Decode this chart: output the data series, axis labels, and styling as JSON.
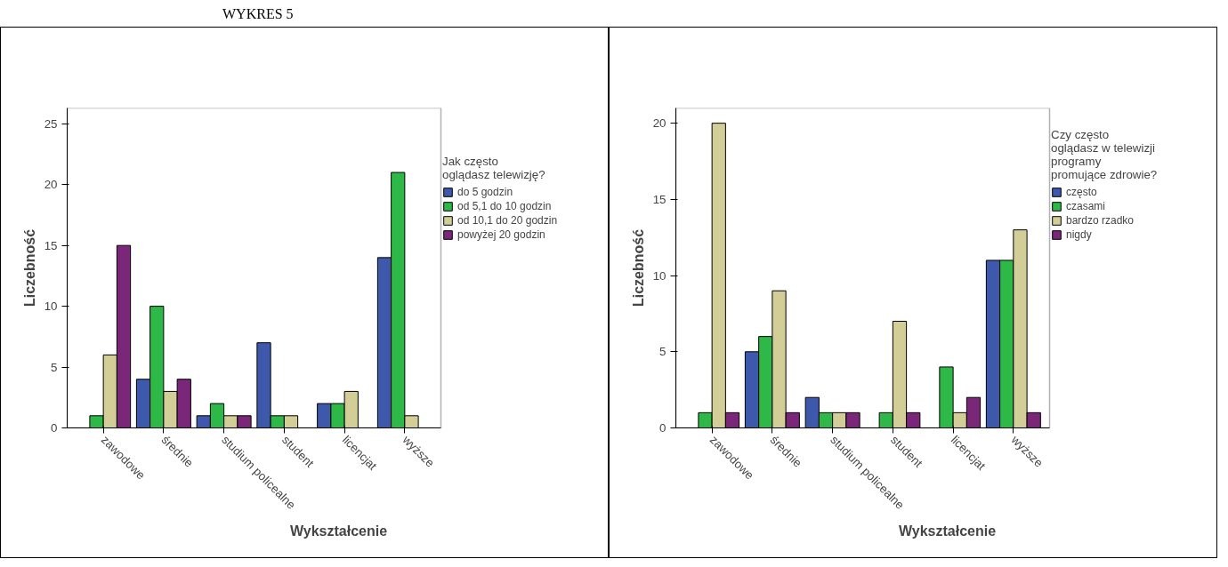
{
  "chart_data": [
    {
      "type": "bar",
      "xlabel": "Wykształcenie",
      "ylabel": "Liczebność",
      "legend_title": "Jak często\noglądasz telewizję?",
      "annotations": [
        "WYKRES 5"
      ],
      "categories": [
        "zawodowe",
        "średnie",
        "studium policealne",
        "student",
        "licencjat",
        "wyższe"
      ],
      "series": [
        {
          "name": "do 5 godzin",
          "color": "#3e58ac",
          "values": [
            null,
            4,
            1,
            7,
            2,
            14
          ]
        },
        {
          "name": "od 5,1 do 10 godzin",
          "color": "#2eb848",
          "values": [
            1,
            10,
            2,
            1,
            2,
            21
          ]
        },
        {
          "name": "od 10,1 do 20 godzin",
          "color": "#d3ce97",
          "values": [
            6,
            3,
            1,
            1,
            3,
            1
          ]
        },
        {
          "name": "powyżej 20 godzin",
          "color": "#7b2779",
          "values": [
            15,
            4,
            1,
            null,
            null,
            null
          ]
        }
      ],
      "ylim": [
        0,
        26.3
      ],
      "yticks": [
        0,
        5,
        10,
        15,
        20,
        25
      ],
      "grid": false,
      "legend": "right"
    },
    {
      "type": "bar",
      "xlabel": "Wykształcenie",
      "ylabel": "Liczebność",
      "legend_title": "Czy często\noglądasz w telewizji\nprogramy\npromujące zdrowie?",
      "categories": [
        "zawodowe",
        "średnie",
        "studium policealne",
        "student",
        "licencjat",
        "wyższe"
      ],
      "series": [
        {
          "name": "często",
          "color": "#3e58ac",
          "values": [
            null,
            5,
            2,
            null,
            null,
            11
          ]
        },
        {
          "name": "czasami",
          "color": "#2eb848",
          "values": [
            1,
            6,
            1,
            1,
            4,
            11
          ]
        },
        {
          "name": "bardzo rzadko",
          "color": "#d3ce97",
          "values": [
            20,
            9,
            1,
            7,
            1,
            13
          ]
        },
        {
          "name": "nigdy",
          "color": "#7b2779",
          "values": [
            1,
            1,
            1,
            1,
            2,
            1
          ]
        }
      ],
      "ylim": [
        0,
        21
      ],
      "yticks": [
        0,
        5,
        10,
        15,
        20
      ],
      "grid": false,
      "legend": "right"
    }
  ]
}
